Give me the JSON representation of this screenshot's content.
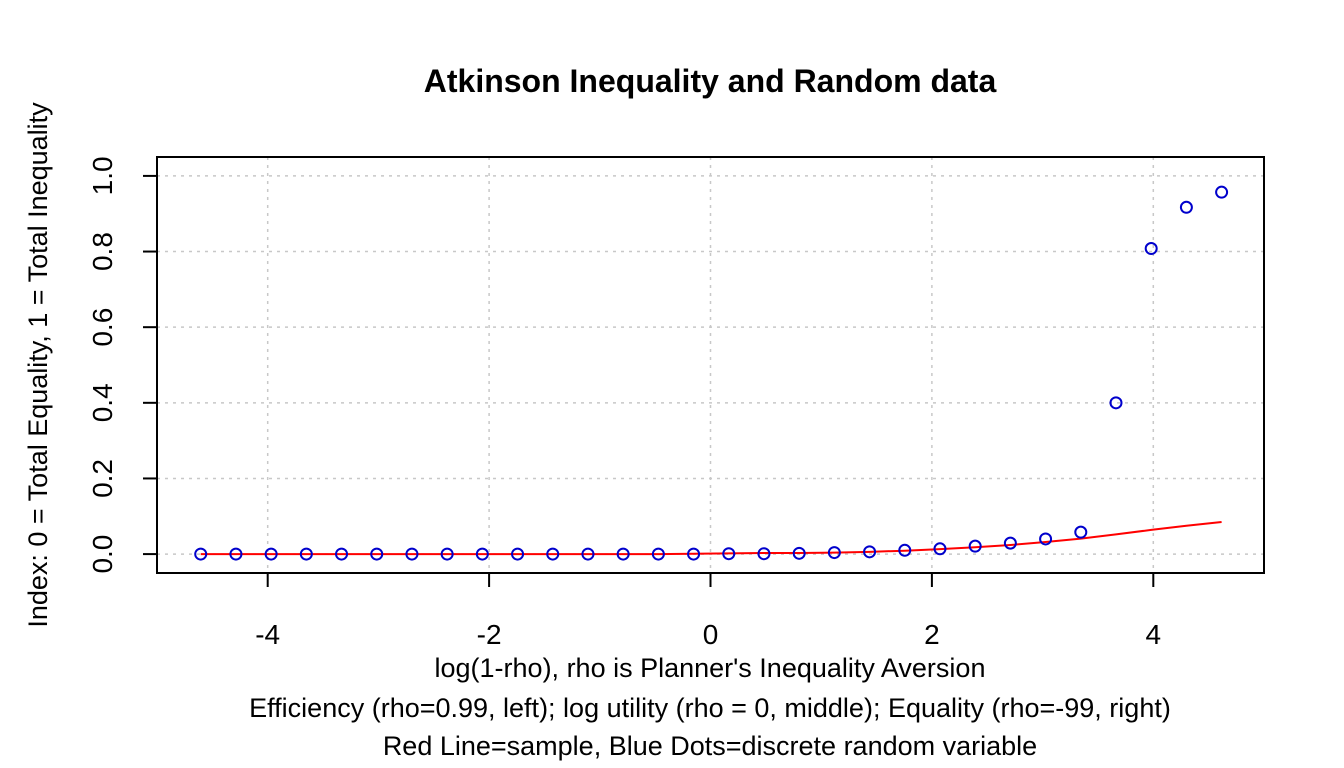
{
  "chart_data": {
    "type": "scatter",
    "title": "Atkinson Inequality and Random data",
    "xlabel": "log(1-rho), rho is Planner's Inequality Aversion",
    "xlabel_lines": [
      "log(1-rho), rho is Planner's Inequality Aversion",
      "Efficiency (rho=0.99, left); log utility (rho = 0, middle); Equality (rho=-99, right)",
      "Red Line=sample, Blue Dots=discrete random variable"
    ],
    "ylabel": "Index: 0 = Total Equality, 1 = Total Inequality",
    "xlim": [
      -5,
      5
    ],
    "ylim": [
      -0.05,
      1.05
    ],
    "x_ticks": [
      -4,
      -2,
      0,
      2,
      4
    ],
    "x_tick_labels": [
      "-4",
      "-2",
      "0",
      "2",
      "4"
    ],
    "y_ticks": [
      0.0,
      0.2,
      0.4,
      0.6,
      0.8,
      1.0
    ],
    "y_tick_labels": [
      "0.0",
      "0.2",
      "0.4",
      "0.6",
      "0.8",
      "1.0"
    ],
    "grid": true,
    "legend": "none",
    "series": [
      {
        "kind": "line",
        "color": "#ff0000",
        "x": [
          -4.605,
          -4.287,
          -3.969,
          -3.651,
          -3.333,
          -3.015,
          -2.697,
          -2.379,
          -2.061,
          -1.743,
          -1.425,
          -1.107,
          -0.789,
          -0.471,
          -0.153,
          0.165,
          0.483,
          0.801,
          1.119,
          1.437,
          1.755,
          2.073,
          2.391,
          2.709,
          3.027,
          3.345,
          3.663,
          3.981,
          4.299,
          4.617
        ],
        "y": [
          0.0,
          0.0,
          0.0,
          0.0,
          0.0,
          0.0,
          0.0,
          0.0,
          0.0,
          0.0,
          0.0,
          0.0,
          0.0,
          0.0,
          0.001,
          0.002,
          0.003,
          0.003,
          0.004,
          0.006,
          0.009,
          0.013,
          0.018,
          0.024,
          0.032,
          0.041,
          0.052,
          0.064,
          0.075,
          0.085
        ]
      },
      {
        "kind": "points",
        "color": "#0000cc",
        "x": [
          -4.605,
          -4.287,
          -3.969,
          -3.651,
          -3.333,
          -3.015,
          -2.697,
          -2.379,
          -2.061,
          -1.743,
          -1.425,
          -1.107,
          -0.789,
          -0.471,
          -0.153,
          0.165,
          0.483,
          0.801,
          1.119,
          1.437,
          1.755,
          2.073,
          2.391,
          2.709,
          3.027,
          3.345,
          3.663,
          3.981,
          4.299,
          4.617
        ],
        "y": [
          0.0,
          0.0,
          0.0,
          0.0,
          0.0,
          0.0,
          0.0,
          0.0,
          0.0,
          0.0,
          0.0,
          0.0,
          0.0,
          0.0,
          0.0,
          0.001,
          0.001,
          0.002,
          0.004,
          0.006,
          0.01,
          0.014,
          0.021,
          0.029,
          0.04,
          0.058,
          0.4,
          0.808,
          0.917,
          0.957
        ]
      }
    ]
  }
}
